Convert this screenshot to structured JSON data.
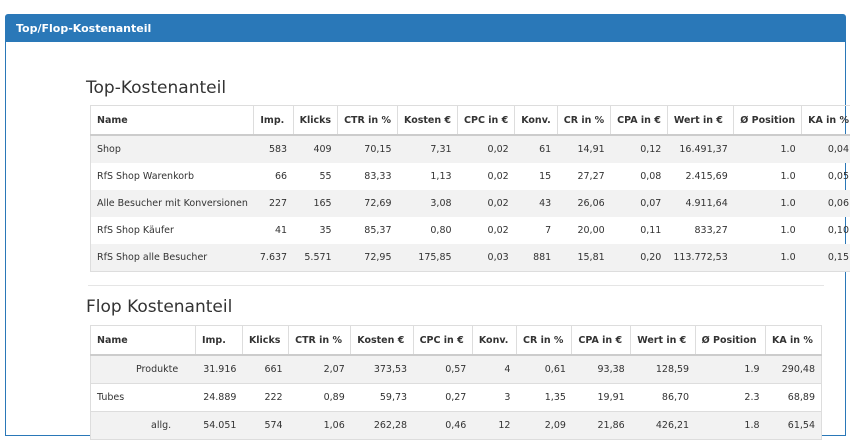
{
  "panel": {
    "title": "Top/Flop-Kostenanteil"
  },
  "top": {
    "title": "Top-Kostenanteil",
    "columns": [
      "Name",
      "Imp.",
      "Klicks",
      "CTR in %",
      "Kosten €",
      "CPC in €",
      "Konv.",
      "CR in %",
      "CPA in €",
      "Wert in €",
      "Ø Position",
      "KA in %"
    ],
    "rows": [
      [
        "Shop",
        "583",
        "409",
        "70,15",
        "7,31",
        "0,02",
        "61",
        "14,91",
        "0,12",
        "16.491,37",
        "1.0",
        "0,04"
      ],
      [
        "RfS Shop Warenkorb",
        "66",
        "55",
        "83,33",
        "1,13",
        "0,02",
        "15",
        "27,27",
        "0,08",
        "2.415,69",
        "1.0",
        "0,05"
      ],
      [
        "Alle Besucher mit Konversionen",
        "227",
        "165",
        "72,69",
        "3,08",
        "0,02",
        "43",
        "26,06",
        "0,07",
        "4.911,64",
        "1.0",
        "0,06"
      ],
      [
        "RfS Shop Käufer",
        "41",
        "35",
        "85,37",
        "0,80",
        "0,02",
        "7",
        "20,00",
        "0,11",
        "833,27",
        "1.0",
        "0,10"
      ],
      [
        "RfS Shop alle Besucher",
        "7.637",
        "5.571",
        "72,95",
        "175,85",
        "0,03",
        "881",
        "15,81",
        "0,20",
        "113.772,53",
        "1.0",
        "0,15"
      ]
    ]
  },
  "flop": {
    "title": "Flop Kostenanteil",
    "columns": [
      "Name",
      "Imp.",
      "Klicks",
      "CTR in %",
      "Kosten €",
      "CPC in €",
      "Konv.",
      "CR in %",
      "CPA in €",
      "Wert in €",
      "Ø Position",
      "KA in %"
    ],
    "rows": [
      [
        "Produkte",
        "31.916",
        "661",
        "2,07",
        "373,53",
        "0,57",
        "4",
        "0,61",
        "93,38",
        "128,59",
        "1.9",
        "290,48"
      ],
      [
        "Tubes",
        "24.889",
        "222",
        "0,89",
        "59,73",
        "0,27",
        "3",
        "1,35",
        "19,91",
        "86,70",
        "2.3",
        "68,89"
      ],
      [
        "allg.",
        "54.051",
        "574",
        "1,06",
        "262,28",
        "0,46",
        "12",
        "2,09",
        "21,86",
        "426,21",
        "1.8",
        "61,54"
      ]
    ]
  }
}
